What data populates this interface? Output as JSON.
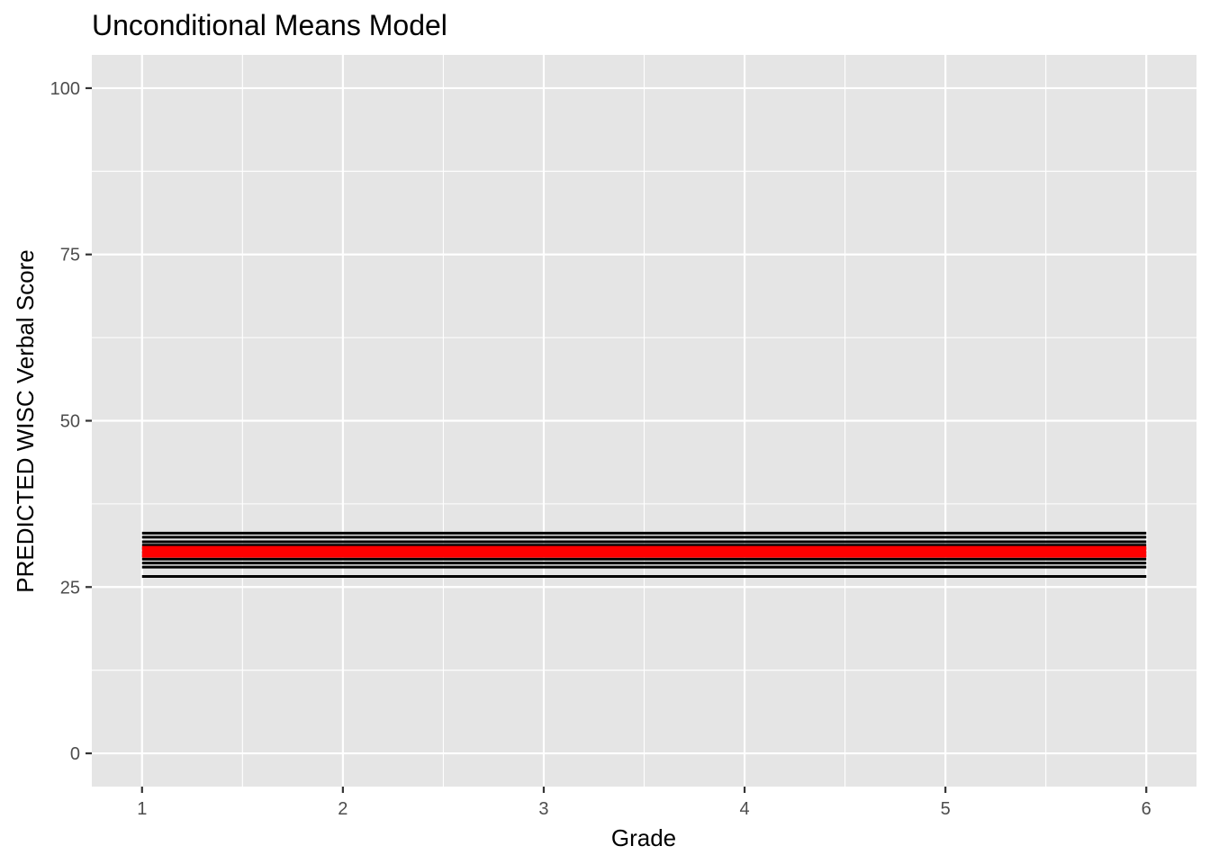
{
  "chart_data": {
    "type": "line",
    "title": "Unconditional Means Model",
    "xlabel": "Grade",
    "ylabel": "PREDICTED WISC Verbal Score",
    "xlim": [
      0.75,
      6.25
    ],
    "ylim": [
      -5,
      105
    ],
    "x_ticks": [
      1,
      2,
      3,
      4,
      5,
      6
    ],
    "x_tick_labels": [
      "1",
      "2",
      "3",
      "4",
      "5",
      "6"
    ],
    "y_ticks": [
      0,
      25,
      50,
      75,
      100
    ],
    "y_tick_labels": [
      "0",
      "25",
      "50",
      "75",
      "100"
    ],
    "grid": true,
    "background": "#e5e5e5",
    "grid_color": "#ffffff",
    "series_individual": {
      "color": "#000000",
      "x": [
        1,
        6
      ],
      "levels": [
        26.6,
        28.0,
        28.6,
        29.2,
        29.7,
        30.2,
        30.8,
        31.3,
        31.8,
        32.5,
        33.1
      ]
    },
    "series_mean": {
      "color": "#ff0000",
      "x": [
        1,
        6
      ],
      "value": 30.3
    }
  }
}
